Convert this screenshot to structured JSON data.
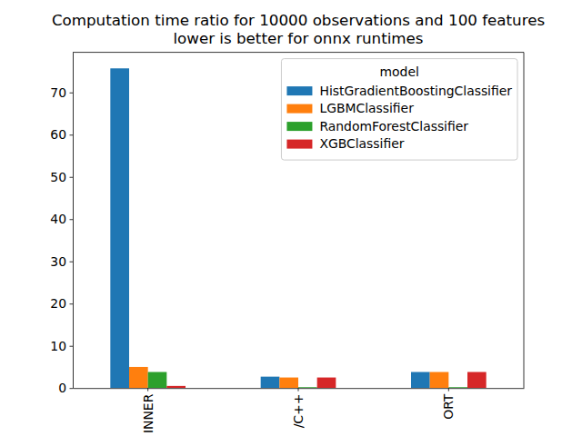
{
  "chart_data": {
    "type": "bar",
    "title": "Computation time ratio for 10000 observations and 100 features",
    "subtitle": "lower is better for onnx runtimes",
    "legend_title": "model",
    "categories": [
      "INNER",
      "/C++",
      "ORT"
    ],
    "series": [
      {
        "name": "HistGradientBoostingClassifier",
        "color": "#1f77b4",
        "values": [
          75.7,
          2.7,
          3.8
        ]
      },
      {
        "name": "LGBMClassifier",
        "color": "#ff7f0e",
        "values": [
          5.0,
          2.5,
          3.8
        ]
      },
      {
        "name": "RandomForestClassifier",
        "color": "#2ca02c",
        "values": [
          3.8,
          0.2,
          0.2
        ]
      },
      {
        "name": "XGBClassifier",
        "color": "#d62728",
        "values": [
          0.5,
          2.5,
          3.8
        ]
      }
    ],
    "ylim": [
      0,
      79.5
    ],
    "yticks": [
      0,
      10,
      20,
      30,
      40,
      50,
      60,
      70
    ],
    "grid": false,
    "legend": "upper right"
  }
}
